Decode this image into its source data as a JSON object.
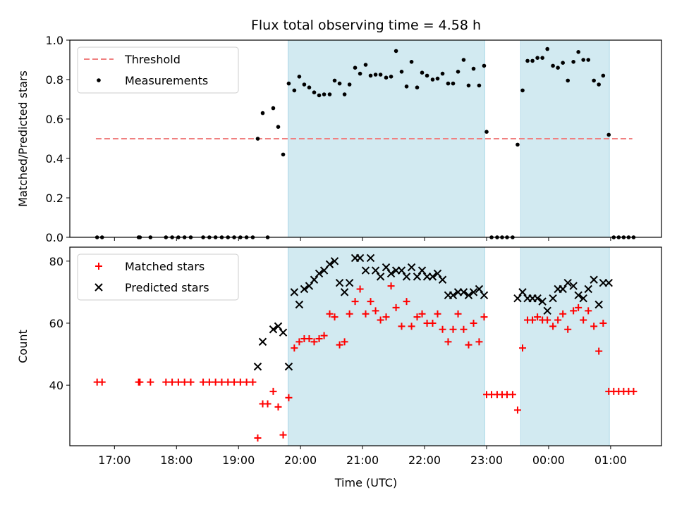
{
  "figure": {
    "title": "Flux total observing time = 4.58 h",
    "xlabel": "Time (UTC)"
  },
  "colors": {
    "threshold": "#f08080",
    "matched": "#ff0000",
    "predicted": "#000000",
    "measurement": "#000000",
    "observing_band": "#add8e6"
  },
  "x_ticks": [
    "17:00",
    "18:00",
    "19:00",
    "20:00",
    "21:00",
    "22:00",
    "23:00",
    "00:00",
    "01:00"
  ],
  "chart_data": [
    {
      "type": "scatter",
      "name": "ratio",
      "ylabel": "Matched/Predicted stars",
      "ylim": [
        0,
        1.0
      ],
      "yticks": [
        "0.0",
        "0.2",
        "0.4",
        "0.6",
        "0.8",
        "1.0"
      ],
      "xlim": [
        16.28,
        25.82
      ],
      "legend": {
        "placement": "top-left",
        "entries": [
          "Threshold",
          "Measurements"
        ]
      },
      "observing_bands": [
        [
          19.8,
          22.97
        ],
        [
          23.55,
          24.98
        ]
      ],
      "threshold": {
        "name": "Threshold",
        "value": 0.5,
        "x_range": [
          16.7,
          25.35
        ]
      },
      "series": [
        {
          "name": "Measurements",
          "marker": "dot",
          "points": [
            [
              16.72,
              0
            ],
            [
              16.8,
              0
            ],
            [
              17.39,
              0
            ],
            [
              17.41,
              0
            ],
            [
              17.58,
              0
            ],
            [
              17.83,
              0
            ],
            [
              17.93,
              0
            ],
            [
              18.03,
              0
            ],
            [
              18.13,
              0
            ],
            [
              18.23,
              0
            ],
            [
              18.43,
              0
            ],
            [
              18.53,
              0
            ],
            [
              18.63,
              0
            ],
            [
              18.73,
              0
            ],
            [
              18.83,
              0
            ],
            [
              18.93,
              0
            ],
            [
              19.03,
              0
            ],
            [
              19.13,
              0
            ],
            [
              19.23,
              0
            ],
            [
              19.31,
              0.5
            ],
            [
              19.39,
              0.63
            ],
            [
              19.47,
              0
            ],
            [
              19.56,
              0.655
            ],
            [
              19.64,
              0.56
            ],
            [
              19.72,
              0.42
            ],
            [
              19.81,
              0.78
            ],
            [
              19.9,
              0.745
            ],
            [
              19.98,
              0.815
            ],
            [
              20.06,
              0.775
            ],
            [
              20.14,
              0.76
            ],
            [
              20.22,
              0.735
            ],
            [
              20.3,
              0.72
            ],
            [
              20.38,
              0.725
            ],
            [
              20.47,
              0.725
            ],
            [
              20.55,
              0.795
            ],
            [
              20.63,
              0.78
            ],
            [
              20.71,
              0.725
            ],
            [
              20.79,
              0.775
            ],
            [
              20.88,
              0.86
            ],
            [
              20.96,
              0.83
            ],
            [
              21.05,
              0.875
            ],
            [
              21.13,
              0.82
            ],
            [
              21.21,
              0.825
            ],
            [
              21.29,
              0.825
            ],
            [
              21.38,
              0.81
            ],
            [
              21.46,
              0.815
            ],
            [
              21.54,
              0.945
            ],
            [
              21.63,
              0.84
            ],
            [
              21.71,
              0.765
            ],
            [
              21.79,
              0.89
            ],
            [
              21.88,
              0.76
            ],
            [
              21.96,
              0.835
            ],
            [
              22.04,
              0.82
            ],
            [
              22.13,
              0.8
            ],
            [
              22.21,
              0.805
            ],
            [
              22.29,
              0.83
            ],
            [
              22.38,
              0.78
            ],
            [
              22.46,
              0.78
            ],
            [
              22.54,
              0.84
            ],
            [
              22.63,
              0.9
            ],
            [
              22.71,
              0.77
            ],
            [
              22.79,
              0.855
            ],
            [
              22.88,
              0.77
            ],
            [
              22.96,
              0.87
            ],
            [
              23.0,
              0.535
            ],
            [
              23.08,
              0
            ],
            [
              23.17,
              0
            ],
            [
              23.25,
              0
            ],
            [
              23.33,
              0
            ],
            [
              23.42,
              0
            ],
            [
              23.5,
              0.47
            ],
            [
              23.58,
              0.745
            ],
            [
              23.66,
              0.895
            ],
            [
              23.74,
              0.895
            ],
            [
              23.82,
              0.91
            ],
            [
              23.9,
              0.91
            ],
            [
              23.98,
              0.955
            ],
            [
              24.07,
              0.87
            ],
            [
              24.15,
              0.86
            ],
            [
              24.23,
              0.885
            ],
            [
              24.31,
              0.795
            ],
            [
              24.4,
              0.89
            ],
            [
              24.48,
              0.94
            ],
            [
              24.56,
              0.9
            ],
            [
              24.64,
              0.9
            ],
            [
              24.73,
              0.795
            ],
            [
              24.81,
              0.775
            ],
            [
              24.88,
              0.82
            ],
            [
              24.97,
              0.52
            ],
            [
              25.05,
              0
            ],
            [
              25.13,
              0
            ],
            [
              25.21,
              0
            ],
            [
              25.29,
              0
            ],
            [
              25.37,
              0
            ]
          ]
        }
      ]
    },
    {
      "type": "scatter",
      "name": "counts",
      "ylabel": "Count",
      "ylim": [
        20.5,
        84.5
      ],
      "yticks": [
        "40",
        "60",
        "80"
      ],
      "xlim": [
        16.28,
        25.82
      ],
      "legend": {
        "placement": "top-left",
        "entries": [
          "Matched stars",
          "Predicted stars"
        ]
      },
      "observing_bands": [
        [
          19.8,
          22.97
        ],
        [
          23.55,
          24.98
        ]
      ],
      "series": [
        {
          "name": "Matched stars",
          "marker": "plus",
          "points": [
            [
              16.72,
              41
            ],
            [
              16.8,
              41
            ],
            [
              17.39,
              41
            ],
            [
              17.41,
              41
            ],
            [
              17.58,
              41
            ],
            [
              17.83,
              41
            ],
            [
              17.93,
              41
            ],
            [
              18.03,
              41
            ],
            [
              18.13,
              41
            ],
            [
              18.23,
              41
            ],
            [
              18.43,
              41
            ],
            [
              18.53,
              41
            ],
            [
              18.63,
              41
            ],
            [
              18.73,
              41
            ],
            [
              18.83,
              41
            ],
            [
              18.93,
              41
            ],
            [
              19.03,
              41
            ],
            [
              19.13,
              41
            ],
            [
              19.23,
              41
            ],
            [
              19.31,
              23
            ],
            [
              19.39,
              34
            ],
            [
              19.47,
              34
            ],
            [
              19.56,
              38
            ],
            [
              19.64,
              33
            ],
            [
              19.72,
              24
            ],
            [
              19.81,
              36
            ],
            [
              19.9,
              52
            ],
            [
              19.98,
              54
            ],
            [
              20.06,
              55
            ],
            [
              20.14,
              55
            ],
            [
              20.22,
              54
            ],
            [
              20.3,
              55
            ],
            [
              20.38,
              56
            ],
            [
              20.47,
              63
            ],
            [
              20.55,
              62
            ],
            [
              20.63,
              53
            ],
            [
              20.71,
              54
            ],
            [
              20.79,
              63
            ],
            [
              20.88,
              67
            ],
            [
              20.96,
              71
            ],
            [
              21.05,
              63
            ],
            [
              21.13,
              67
            ],
            [
              21.21,
              64
            ],
            [
              21.29,
              61
            ],
            [
              21.38,
              62
            ],
            [
              21.46,
              72
            ],
            [
              21.54,
              65
            ],
            [
              21.63,
              59
            ],
            [
              21.71,
              67
            ],
            [
              21.79,
              59
            ],
            [
              21.88,
              62
            ],
            [
              21.96,
              63
            ],
            [
              22.04,
              60
            ],
            [
              22.13,
              60
            ],
            [
              22.21,
              63
            ],
            [
              22.29,
              58
            ],
            [
              22.38,
              54
            ],
            [
              22.46,
              58
            ],
            [
              22.54,
              63
            ],
            [
              22.63,
              58
            ],
            [
              22.71,
              53
            ],
            [
              22.79,
              60
            ],
            [
              22.88,
              54
            ],
            [
              22.96,
              62
            ],
            [
              23.0,
              37
            ],
            [
              23.08,
              37
            ],
            [
              23.17,
              37
            ],
            [
              23.25,
              37
            ],
            [
              23.33,
              37
            ],
            [
              23.42,
              37
            ],
            [
              23.5,
              32
            ],
            [
              23.58,
              52
            ],
            [
              23.66,
              61
            ],
            [
              23.74,
              61
            ],
            [
              23.82,
              62
            ],
            [
              23.9,
              61
            ],
            [
              23.98,
              61
            ],
            [
              24.07,
              59
            ],
            [
              24.15,
              61
            ],
            [
              24.23,
              63
            ],
            [
              24.31,
              58
            ],
            [
              24.4,
              64
            ],
            [
              24.48,
              65
            ],
            [
              24.56,
              61
            ],
            [
              24.64,
              64
            ],
            [
              24.73,
              59
            ],
            [
              24.81,
              51
            ],
            [
              24.88,
              60
            ],
            [
              24.97,
              38
            ],
            [
              25.05,
              38
            ],
            [
              25.13,
              38
            ],
            [
              25.21,
              38
            ],
            [
              25.29,
              38
            ],
            [
              25.37,
              38
            ]
          ]
        },
        {
          "name": "Predicted stars",
          "marker": "x",
          "points": [
            [
              19.31,
              46
            ],
            [
              19.39,
              54
            ],
            [
              19.56,
              58
            ],
            [
              19.64,
              59
            ],
            [
              19.72,
              57
            ],
            [
              19.81,
              46
            ],
            [
              19.9,
              70
            ],
            [
              19.98,
              66
            ],
            [
              20.06,
              71
            ],
            [
              20.14,
              72
            ],
            [
              20.22,
              74
            ],
            [
              20.3,
              76
            ],
            [
              20.38,
              77
            ],
            [
              20.47,
              79
            ],
            [
              20.55,
              80
            ],
            [
              20.63,
              73
            ],
            [
              20.71,
              70
            ],
            [
              20.79,
              73
            ],
            [
              20.88,
              81
            ],
            [
              20.96,
              81
            ],
            [
              21.05,
              77
            ],
            [
              21.13,
              81
            ],
            [
              21.21,
              77
            ],
            [
              21.29,
              75
            ],
            [
              21.38,
              78
            ],
            [
              21.46,
              76
            ],
            [
              21.54,
              77
            ],
            [
              21.63,
              77
            ],
            [
              21.71,
              75
            ],
            [
              21.79,
              78
            ],
            [
              21.88,
              75
            ],
            [
              21.96,
              77
            ],
            [
              22.04,
              75
            ],
            [
              22.13,
              75
            ],
            [
              22.21,
              76
            ],
            [
              22.29,
              74
            ],
            [
              22.38,
              69
            ],
            [
              22.46,
              69
            ],
            [
              22.54,
              70
            ],
            [
              22.63,
              70
            ],
            [
              22.71,
              69
            ],
            [
              22.79,
              70
            ],
            [
              22.88,
              71
            ],
            [
              22.96,
              69
            ],
            [
              23.5,
              68
            ],
            [
              23.58,
              70
            ],
            [
              23.66,
              68
            ],
            [
              23.74,
              68
            ],
            [
              23.82,
              68
            ],
            [
              23.9,
              67
            ],
            [
              23.98,
              64
            ],
            [
              24.07,
              68
            ],
            [
              24.15,
              71
            ],
            [
              24.23,
              71
            ],
            [
              24.31,
              73
            ],
            [
              24.4,
              72
            ],
            [
              24.48,
              69
            ],
            [
              24.56,
              68
            ],
            [
              24.64,
              71
            ],
            [
              24.73,
              74
            ],
            [
              24.81,
              66
            ],
            [
              24.88,
              73
            ],
            [
              24.97,
              73
            ]
          ]
        }
      ]
    }
  ]
}
